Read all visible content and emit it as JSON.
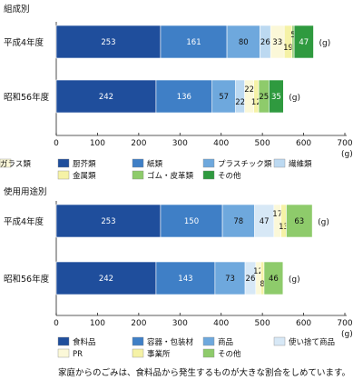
{
  "caption": "家庭からのごみは、食料品から発生するものが大きな割合をしめています。",
  "chart_data": [
    {
      "type": "bar",
      "orientation": "horizontal",
      "stacked": true,
      "title": "組成別",
      "categories": [
        "平成4年度",
        "昭和56年度"
      ],
      "series": [
        {
          "name": "厨芥類",
          "values": [
            253,
            242
          ],
          "color": "#1f4e9c"
        },
        {
          "name": "紙類",
          "values": [
            161,
            136
          ],
          "color": "#3f7fc6"
        },
        {
          "name": "プラスチック類",
          "values": [
            80,
            57
          ],
          "color": "#6ea8dd"
        },
        {
          "name": "繊維類",
          "values": [
            26,
            22
          ],
          "color": "#bcd9f1"
        },
        {
          "name": "ガラス類",
          "values": [
            33,
            22
          ],
          "color": "#fbf8d8"
        },
        {
          "name": "金属類",
          "values": [
            19,
            12
          ],
          "color": "#f5f2a6"
        },
        {
          "name": "ゴム・皮革類",
          "values": [
            5,
            25
          ],
          "color": "#8ecb6b"
        },
        {
          "name": "その他",
          "values": [
            47,
            35
          ],
          "color": "#2f9a3f"
        }
      ],
      "xlim": [
        0,
        700
      ],
      "xticks": [
        0,
        100,
        200,
        300,
        400,
        500,
        600,
        700
      ],
      "unit": "(g)",
      "axis_unit": "(g)"
    },
    {
      "type": "bar",
      "orientation": "horizontal",
      "stacked": true,
      "title": "使用用途別",
      "categories": [
        "平成4年度",
        "昭和56年度"
      ],
      "series": [
        {
          "name": "食料品",
          "values": [
            253,
            242
          ],
          "color": "#1f4e9c"
        },
        {
          "name": "容器・包装材",
          "values": [
            150,
            143
          ],
          "color": "#3f7fc6"
        },
        {
          "name": "商品",
          "values": [
            78,
            73
          ],
          "color": "#6ea8dd"
        },
        {
          "name": "使い捨て商品",
          "values": [
            47,
            26
          ],
          "color": "#d7e8f6"
        },
        {
          "name": "PR",
          "values": [
            17,
            12
          ],
          "color": "#fbf8d8"
        },
        {
          "name": "事業所",
          "values": [
            13,
            8
          ],
          "color": "#f5f2a6"
        },
        {
          "name": "その他",
          "values": [
            63,
            46
          ],
          "color": "#8ecb6b"
        }
      ],
      "xlim": [
        0,
        700
      ],
      "xticks": [
        0,
        100,
        200,
        300,
        400,
        500,
        600,
        700
      ],
      "unit": "(g)",
      "axis_unit": "(g)"
    }
  ]
}
